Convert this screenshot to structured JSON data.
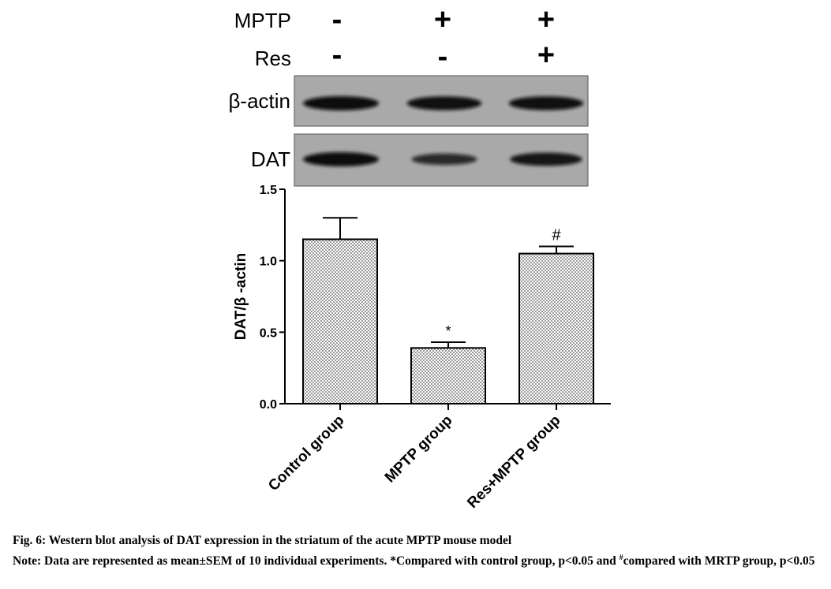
{
  "blot": {
    "treatment_rows": [
      {
        "label": "MPTP",
        "values": [
          "-",
          "+",
          "+"
        ]
      },
      {
        "label": "Res",
        "values": [
          "-",
          "-",
          "+"
        ]
      }
    ],
    "bands": [
      {
        "label": "β-actin",
        "intensities": [
          1.0,
          0.95,
          0.95
        ]
      },
      {
        "label": "DAT",
        "intensities": [
          1.0,
          0.55,
          0.85
        ]
      }
    ]
  },
  "chart_data": {
    "type": "bar",
    "categories": [
      "Control group",
      "MPTP group",
      "Res+MPTP group"
    ],
    "values": [
      1.15,
      0.39,
      1.05
    ],
    "errors": [
      0.15,
      0.04,
      0.05
    ],
    "annotations": [
      "",
      "*",
      "#"
    ],
    "ylabel": "DAT/β -actin",
    "xlabel": "",
    "ylim": [
      0,
      1.5
    ],
    "yticks": [
      "0.0",
      "0.5",
      "1.0",
      "1.5"
    ],
    "grid": false,
    "bar_pattern": "crosshatch"
  },
  "caption": {
    "title": "Fig. 6: Western blot analysis of DAT expression in the striatum of the acute MPTP mouse model",
    "note_prefix": "Note: Data are represented as mean±SEM of 10 individual experiments. *Compared with control group, p<0.05 and ",
    "note_sup": "#",
    "note_suffix": "compared with MRTP group, p<0.05"
  }
}
